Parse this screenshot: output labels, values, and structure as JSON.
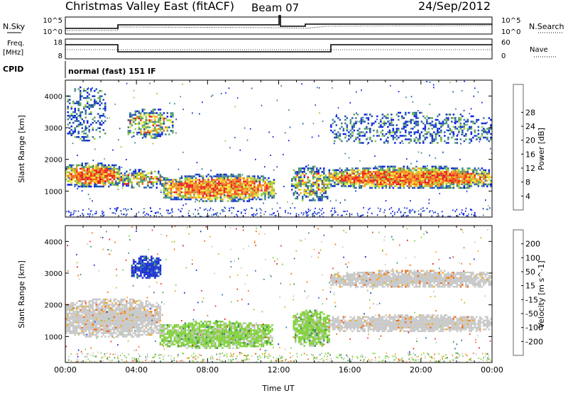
{
  "header": {
    "title": "Christmas Valley East (fitACF)",
    "beam": "Beam 07",
    "date": "24/Sep/2012"
  },
  "panels": {
    "nsky": {
      "left_label": "N.Sky",
      "right_label": "N.Search",
      "left_ticks": [
        "10^5",
        "10^0"
      ],
      "right_ticks": [
        "10^5",
        "10^0"
      ]
    },
    "freq": {
      "left_label_1": "Freq.",
      "left_label_2": "[MHz]",
      "left_ticks": [
        "18",
        "8"
      ],
      "right_ticks": [
        "60",
        "0"
      ],
      "right_label": "Nave"
    },
    "cpid": {
      "label": "CPID",
      "text": "normal (fast) 151 IF"
    }
  },
  "chart_data": [
    {
      "type": "heatmap",
      "name": "power",
      "ylabel": "Slant Range [km]",
      "xlabel": "",
      "ylim": [
        180,
        4500
      ],
      "yticks": [
        "1000",
        "2000",
        "3000",
        "4000"
      ],
      "colorbar": {
        "label": "Power [dB]",
        "ticks": [
          "4",
          "8",
          "12",
          "16",
          "20",
          "24",
          "28"
        ],
        "colors": [
          "#0a1fe6",
          "#1e4fb4",
          "#3c7d96",
          "#5aa064",
          "#8fcc3a",
          "#f0e632",
          "#f5a520",
          "#f06a1a",
          "#e81c1c"
        ]
      },
      "regions": [
        {
          "t0": 0.0,
          "t1": 3.0,
          "r0": 1150,
          "r1": 1900,
          "level": "strong"
        },
        {
          "t0": 2.9,
          "t1": 5.4,
          "r0": 1100,
          "r1": 1700,
          "level": "medium"
        },
        {
          "t0": 5.5,
          "t1": 11.7,
          "r0": 700,
          "r1": 1550,
          "level": "strong"
        },
        {
          "t0": 0.1,
          "t1": 2.2,
          "r0": 2600,
          "r1": 4300,
          "level": "weak"
        },
        {
          "t0": 3.5,
          "t1": 6.0,
          "r0": 2700,
          "r1": 3600,
          "level": "medium"
        },
        {
          "t0": 12.7,
          "t1": 14.8,
          "r0": 700,
          "r1": 1800,
          "level": "medium"
        },
        {
          "t0": 14.8,
          "t1": 24.0,
          "r0": 1100,
          "r1": 1800,
          "level": "strong"
        },
        {
          "t0": 14.9,
          "t1": 24.0,
          "r0": 2500,
          "r1": 3500,
          "level": "weak"
        }
      ]
    },
    {
      "type": "heatmap",
      "name": "velocity",
      "ylabel": "Slant Range [km]",
      "xlabel": "Time UT",
      "ylim": [
        180,
        4500
      ],
      "yticks": [
        "1000",
        "2000",
        "3000",
        "4000"
      ],
      "xticks": [
        "00:00",
        "04:00",
        "08:00",
        "12:00",
        "16:00",
        "20:00",
        "00:00"
      ],
      "colorbar": {
        "label": "Velocity [m s^-1]",
        "ticks": [
          "200",
          "100",
          "50",
          "15",
          "-15",
          "-50",
          "-100",
          "-200"
        ],
        "colors": [
          "#1428d2",
          "#2d6eb4",
          "#3c9650",
          "#82d23c",
          "#c8c8c8",
          "#f0aa28",
          "#f06e1e",
          "#e63c1e",
          "#e61414"
        ]
      },
      "regions": [
        {
          "t0": 0.0,
          "t1": 5.3,
          "r0": 1000,
          "r1": 2200,
          "level": "ground"
        },
        {
          "t0": 3.7,
          "t1": 5.3,
          "r0": 2850,
          "r1": 3550,
          "level": "positive"
        },
        {
          "t0": 5.3,
          "t1": 11.6,
          "r0": 650,
          "r1": 1500,
          "level": "negative"
        },
        {
          "t0": 12.8,
          "t1": 14.8,
          "r0": 700,
          "r1": 1850,
          "level": "negative"
        },
        {
          "t0": 14.8,
          "t1": 24.0,
          "r0": 1150,
          "r1": 1700,
          "level": "ground"
        },
        {
          "t0": 14.9,
          "t1": 24.0,
          "r0": 2550,
          "r1": 3100,
          "level": "ground"
        }
      ]
    }
  ]
}
